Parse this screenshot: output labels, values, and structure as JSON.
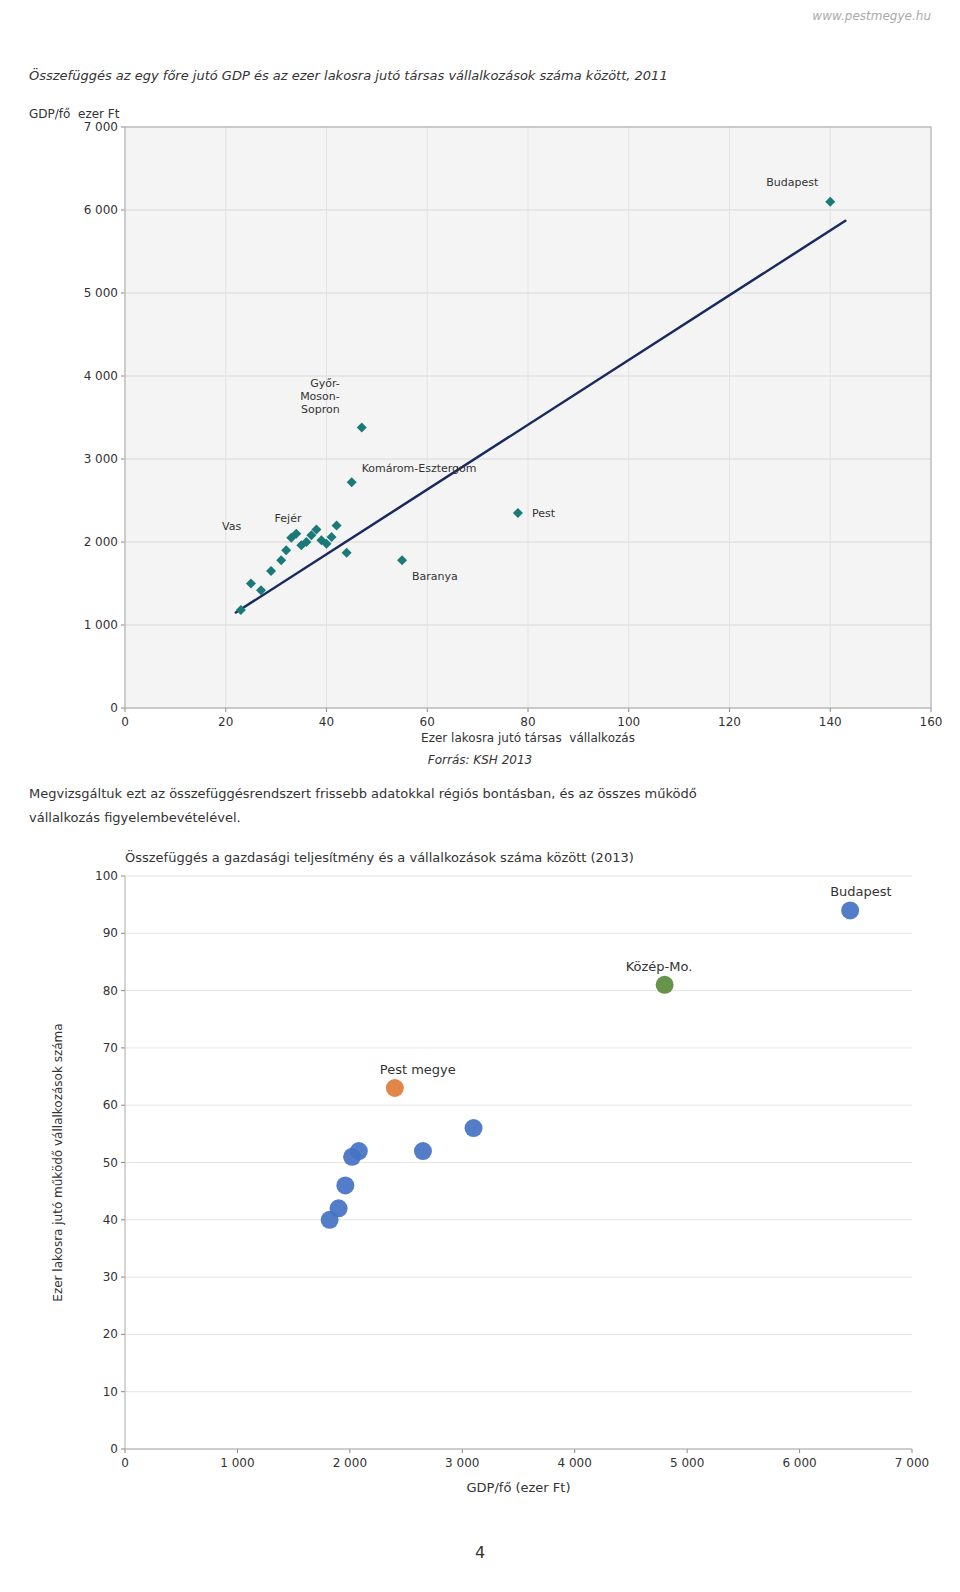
{
  "page_title": "www.pestmegye.hu",
  "text_block": [
    "Megvizsgáltuk ezt az összefüggésrendszert frissebb adatokkal régiós bontásban, és az összes működő",
    "vállalkozás figyelembevételével."
  ],
  "page_number": "4",
  "chart_data": [
    {
      "type": "scatter",
      "title": "Összefüggés az egy főre jutó GDP és az ezer lakosra jutó társas vállalkozások száma között, 2011",
      "ylabel": "GDP/fő  ezer Ft",
      "xlabel": "Ezer lakosra jutó társas  vállalkozás",
      "source": "Forrás: KSH 2013",
      "xlim": [
        0,
        160
      ],
      "ylim": [
        0,
        7000
      ],
      "xticks": [
        0,
        20,
        40,
        60,
        80,
        100,
        120,
        140,
        160
      ],
      "yticks": [
        0,
        {
          "value": 1000,
          "label": "1 000"
        },
        {
          "value": 2000,
          "label": "2 000"
        },
        {
          "value": 3000,
          "label": "3 000"
        },
        {
          "value": 4000,
          "label": "4 000"
        },
        {
          "value": 5000,
          "label": "5 000"
        },
        {
          "value": 6000,
          "label": "6 000"
        },
        {
          "value": 7000,
          "label": "7 000"
        }
      ],
      "grid": true,
      "series": [
        {
          "type": "scatter",
          "color": "#1a7a78",
          "marker": "diamond",
          "x": [
            23,
            25,
            27,
            29,
            31,
            32,
            33,
            34,
            35,
            36,
            37,
            38,
            39,
            40,
            41,
            42,
            44,
            45,
            47,
            55,
            78,
            140
          ],
          "values": [
            1180,
            1500,
            1420,
            1650,
            1780,
            1900,
            2050,
            2100,
            1960,
            2000,
            2080,
            2150,
            2020,
            1980,
            2060,
            2200,
            1870,
            2720,
            3380,
            1780,
            2350,
            6100
          ],
          "labels": [
            null,
            null,
            null,
            null,
            null,
            null,
            "Vas",
            null,
            null,
            null,
            null,
            "Fejér",
            null,
            null,
            null,
            null,
            null,
            "Komárom-Esztergom",
            "Győr-\nMoson-\nSopron",
            "Baranya",
            "Pest",
            "Budapest"
          ]
        },
        {
          "type": "line",
          "color": "#1a2a5e",
          "x": [
            22,
            143
          ],
          "values": [
            1150,
            5870
          ]
        }
      ]
    },
    {
      "type": "scatter",
      "title": "Összefüggés a gazdasági teljesítmény és a vállalkozások száma között (2013)",
      "ylabel": "Ezer lakosra jutó működő vállalkozások száma",
      "xlabel": "GDP/fő (ezer Ft)",
      "xlim": [
        0,
        7000
      ],
      "ylim": [
        0,
        100
      ],
      "xticks": [
        0,
        {
          "value": 1000,
          "label": "1 000"
        },
        {
          "value": 2000,
          "label": "2 000"
        },
        {
          "value": 3000,
          "label": "3 000"
        },
        {
          "value": 4000,
          "label": "4 000"
        },
        {
          "value": 5000,
          "label": "5 000"
        },
        {
          "value": 6000,
          "label": "6 000"
        },
        {
          "value": 7000,
          "label": "7 000"
        }
      ],
      "yticks": [
        0,
        10,
        20,
        30,
        40,
        50,
        60,
        70,
        80,
        90,
        100
      ],
      "grid": "y",
      "series": [
        {
          "type": "scatter",
          "x": [
            1820,
            1900,
            1960,
            2020,
            2080,
            2400,
            2650,
            3100,
            4800,
            6450
          ],
          "values": [
            40,
            42,
            46,
            51,
            52,
            63,
            52,
            56,
            81,
            94
          ],
          "labels": [
            null,
            null,
            null,
            null,
            null,
            "Pest megye",
            null,
            null,
            "Közép-Mo.",
            "Budapest"
          ],
          "colors": [
            "#4472c4",
            "#4472c4",
            "#4472c4",
            "#4472c4",
            "#4472c4",
            "#e07b39",
            "#4472c4",
            "#4472c4",
            "#5a8a3c",
            "#4472c4"
          ]
        }
      ]
    }
  ]
}
